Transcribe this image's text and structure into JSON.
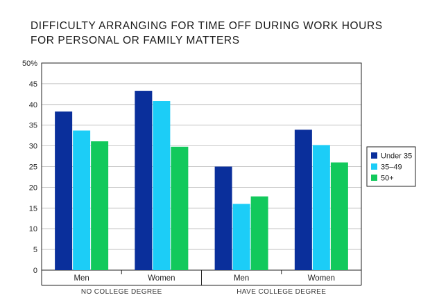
{
  "chart_data": {
    "type": "bar",
    "title_lines": [
      "DIFFICULTY ARRANGING FOR TIME OFF DURING WORK HOURS",
      "FOR PERSONAL OR FAMILY MATTERS"
    ],
    "ylim": [
      0,
      50
    ],
    "yticks": [
      "0",
      "5",
      "10",
      "15",
      "20",
      "25",
      "30",
      "35",
      "40",
      "45",
      "50%"
    ],
    "categories": [
      "Men",
      "Women",
      "Men",
      "Women"
    ],
    "groups": [
      {
        "label": "NO COLLEGE DEGREE",
        "span": [
          0,
          1
        ]
      },
      {
        "label": "HAVE COLLEGE DEGREE",
        "span": [
          2,
          3
        ]
      }
    ],
    "series": [
      {
        "name": "Under 35",
        "color": "#0a2f9b",
        "values": [
          38.3,
          43.3,
          25.0,
          33.9
        ]
      },
      {
        "name": "35–49",
        "color": "#1ccdf7",
        "values": [
          33.7,
          40.8,
          16.0,
          30.2
        ]
      },
      {
        "name": "50+",
        "color": "#12c95c",
        "values": [
          31.1,
          29.8,
          17.8,
          26.0
        ]
      }
    ],
    "grid": true,
    "legend": "right"
  }
}
